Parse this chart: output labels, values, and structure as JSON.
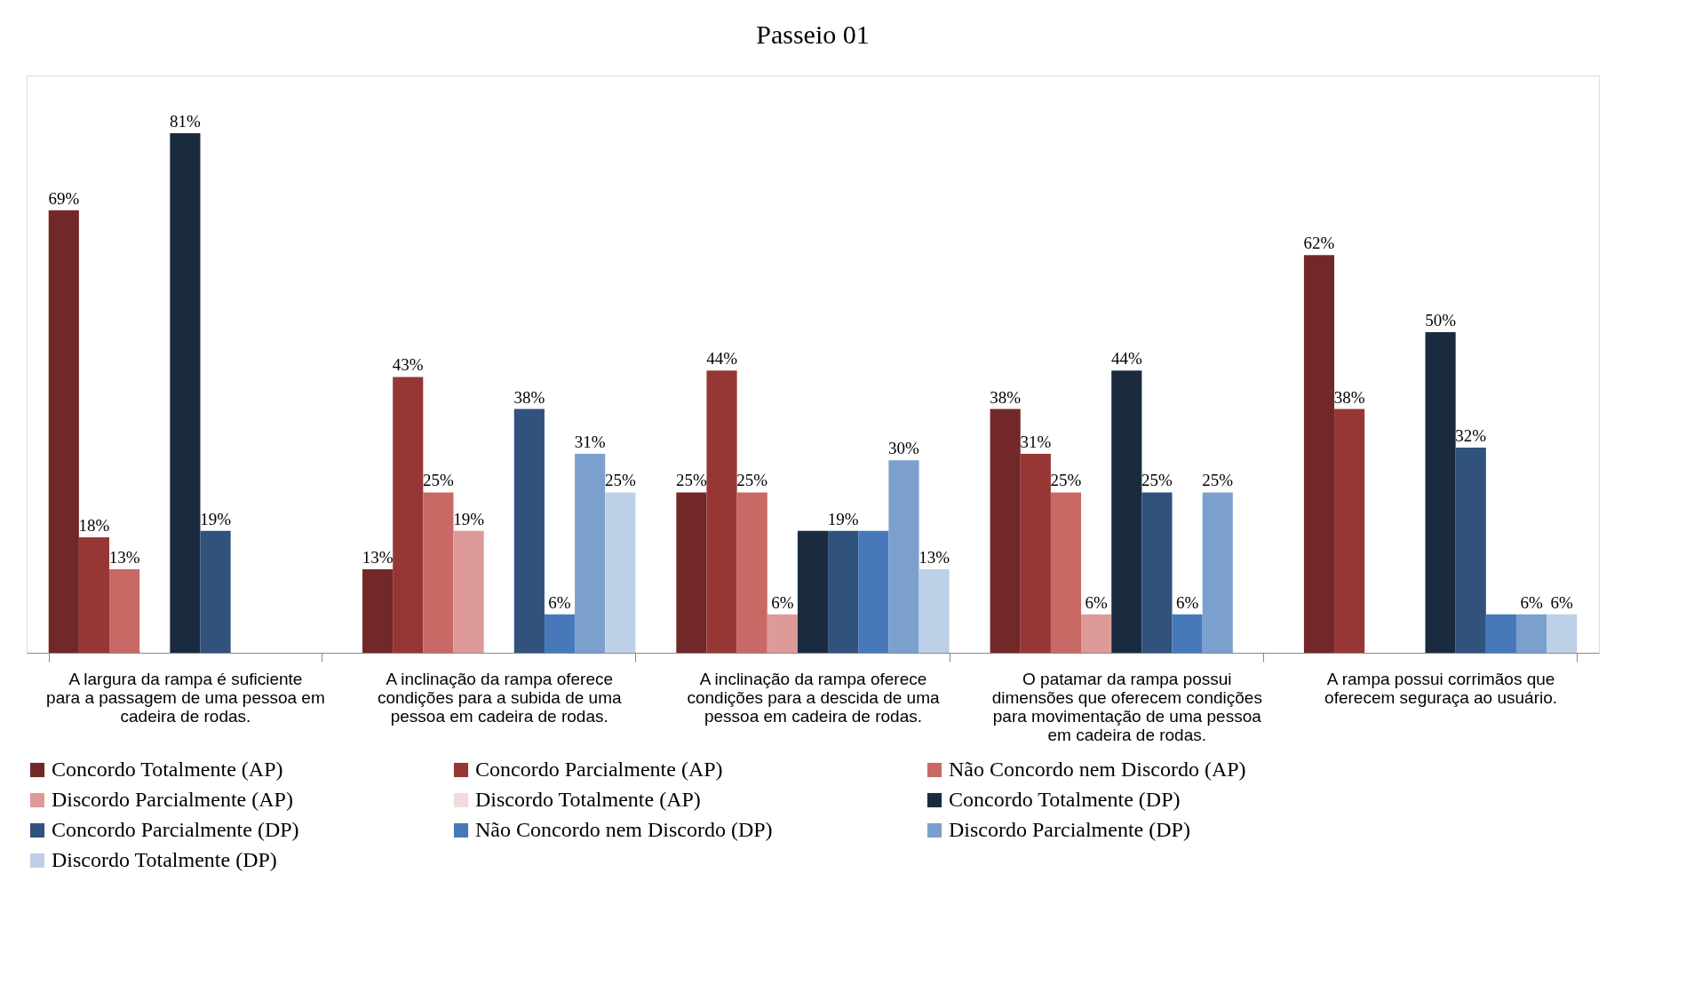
{
  "chart_data": {
    "type": "bar",
    "title": "Passeio 01",
    "categories": [
      "A largura da rampa é suficiente para a passagem de uma pessoa em cadeira de rodas.",
      "A inclinação da rampa oferece condições para a subida de uma pessoa em cadeira de rodas.",
      "A inclinação da rampa oferece condições para a descida de uma pessoa em cadeira de rodas.",
      "O patamar da rampa possui dimensões que oferecem condições para movimentação de uma pessoa em cadeira de rodas.",
      "A rampa possui corrimãos que oferecem seguraça ao usuário."
    ],
    "ylim": [
      0,
      90
    ],
    "tick_labels": "x",
    "grid": false,
    "legend": "bottom",
    "series": [
      {
        "name": "Concordo Totalmente (AP)",
        "color": "#722828",
        "values": [
          69,
          13,
          25,
          38,
          62
        ],
        "value_labels": [
          "69%",
          "13%",
          "25%",
          "38%",
          "62%"
        ]
      },
      {
        "name": "Concordo Parcialmente (AP)",
        "color": "#963735",
        "values": [
          18,
          43,
          44,
          31,
          38
        ],
        "value_labels": [
          "18%",
          "43%",
          "44%",
          "31%",
          "38%"
        ]
      },
      {
        "name": "Não Concordo nem Discordo (AP)",
        "color": "#c96966",
        "values": [
          13,
          25,
          25,
          25,
          null
        ],
        "value_labels": [
          "13%",
          "25%",
          "25%",
          "25%",
          null
        ]
      },
      {
        "name": "Discordo Parcialmente (AP)",
        "color": "#dd9a98",
        "values": [
          null,
          19,
          6,
          6,
          null
        ],
        "value_labels": [
          null,
          "19%",
          "6%",
          "6%",
          null
        ]
      },
      {
        "name": "Discordo Totalmente (AP)",
        "color": "#f2dcdb",
        "values": [
          null,
          null,
          null,
          null,
          null
        ],
        "value_labels": [
          null,
          null,
          null,
          null,
          null
        ]
      },
      {
        "name": "Concordo Totalmente (DP)",
        "color": "#1a2b40",
        "values": [
          81,
          null,
          19,
          44,
          50
        ],
        "value_labels": [
          "81%",
          null,
          null,
          "44%",
          "50%"
        ]
      },
      {
        "name": "Concordo Parcialmente (DP)",
        "color": "#31527c",
        "values": [
          19,
          38,
          19,
          25,
          32
        ],
        "value_labels": [
          "19%",
          "38%",
          "19%",
          "25%",
          "32%"
        ]
      },
      {
        "name": "Não Concordo nem Discordo (DP)",
        "color": "#4779ba",
        "values": [
          null,
          6,
          19,
          6,
          6
        ],
        "value_labels": [
          null,
          "6%",
          null,
          "6%",
          null
        ]
      },
      {
        "name": "Discordo Parcialmente (DP)",
        "color": "#7ba0cd",
        "values": [
          null,
          31,
          30,
          25,
          6
        ],
        "value_labels": [
          null,
          "31%",
          "30%",
          "25%",
          "6%"
        ]
      },
      {
        "name": "Discordo Totalmente (DP)",
        "color": "#bdd0e8",
        "values": [
          null,
          25,
          13,
          null,
          6
        ],
        "value_labels": [
          null,
          "25%",
          "13%",
          null,
          "6%"
        ]
      }
    ]
  }
}
